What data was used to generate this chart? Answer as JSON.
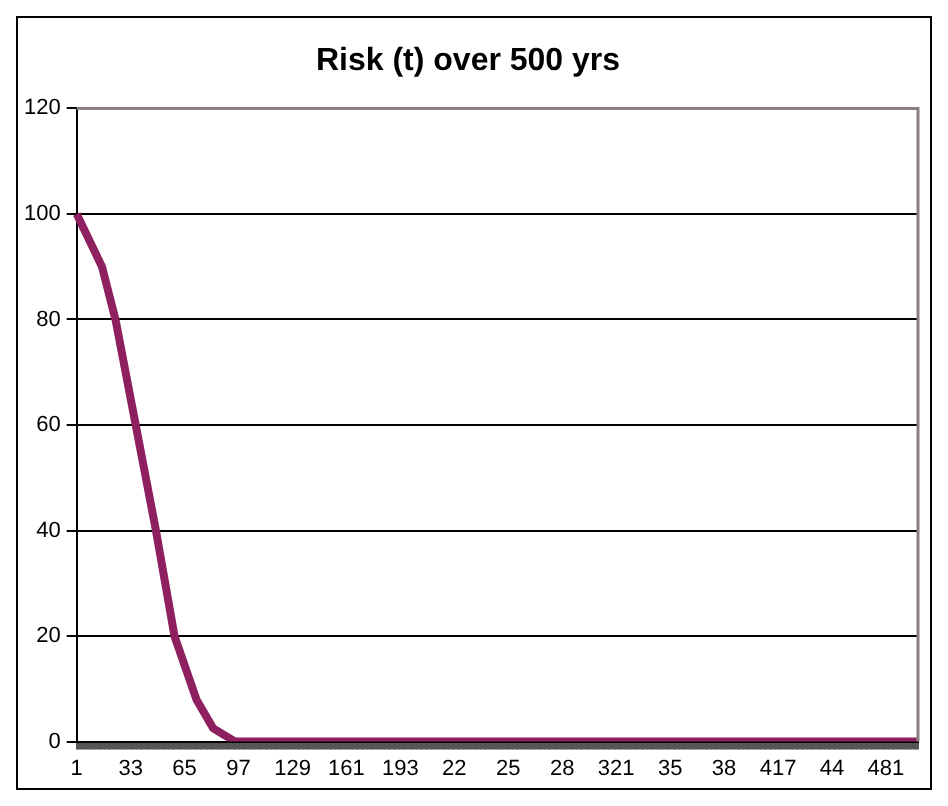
{
  "chart_data": {
    "type": "line",
    "title": "Risk (t) over 500 yrs",
    "categories": [
      "1",
      null,
      null,
      null,
      null,
      null,
      null,
      null,
      null,
      null,
      null,
      null,
      null,
      null,
      null,
      null,
      null,
      null,
      null,
      null,
      null,
      null,
      null,
      null,
      null,
      null,
      null,
      null,
      null,
      null,
      null,
      null,
      "33",
      null,
      null,
      null,
      null,
      null,
      null,
      null,
      null,
      null,
      null,
      null,
      null,
      null,
      null,
      null,
      null,
      null,
      null,
      null,
      null,
      null,
      null,
      null,
      null,
      null,
      null,
      null,
      null,
      null,
      null,
      null,
      "65",
      null,
      null,
      null,
      null,
      null,
      null,
      null,
      null,
      null,
      null,
      null,
      null,
      null,
      null,
      null,
      null,
      null,
      null,
      null,
      null,
      null,
      null,
      null,
      null,
      null,
      null,
      null,
      null,
      null,
      null,
      null,
      "97",
      null,
      null,
      null,
      null,
      null,
      null,
      null,
      null,
      null,
      null,
      null,
      null,
      null,
      null,
      null,
      null,
      null,
      null,
      null,
      null,
      null,
      null,
      null,
      null,
      null,
      null,
      null,
      null,
      null,
      null,
      null,
      "129",
      null,
      null,
      null,
      null,
      null,
      null,
      null,
      null,
      null,
      null,
      null,
      null,
      null,
      null,
      null,
      null,
      null,
      null,
      null,
      null,
      null,
      null,
      null,
      null,
      null,
      null,
      null,
      null,
      null,
      null,
      null,
      "161",
      null,
      null,
      null,
      null,
      null,
      null,
      null,
      null,
      null,
      null,
      null,
      null,
      null,
      null,
      null,
      null,
      null,
      null,
      null,
      null,
      null,
      null,
      null,
      null,
      null,
      null,
      null,
      null,
      null,
      null,
      null,
      "193",
      null,
      null,
      null,
      null,
      null,
      null,
      null,
      null,
      null,
      null,
      null,
      null,
      null,
      null,
      null,
      null,
      null,
      null,
      null,
      null,
      null,
      null,
      null,
      null,
      null,
      null,
      null,
      null,
      null,
      null,
      null,
      "22",
      null,
      null,
      null,
      null,
      null,
      null,
      null,
      null,
      null,
      null,
      null,
      null,
      null,
      null,
      null,
      null,
      null,
      null,
      null,
      null,
      null,
      null,
      null,
      null,
      null,
      null,
      null,
      null,
      null,
      null,
      null,
      "25",
      null,
      null,
      null,
      null,
      null,
      null,
      null,
      null,
      null,
      null,
      null,
      null,
      null,
      null,
      null,
      null,
      null,
      null,
      null,
      null,
      null,
      null,
      null,
      null,
      null,
      null,
      null,
      null,
      null,
      null,
      null,
      "28",
      null,
      null,
      null,
      null,
      null,
      null,
      null,
      null,
      null,
      null,
      null,
      null,
      null,
      null,
      null,
      null,
      null,
      null,
      null,
      null,
      null,
      null,
      null,
      null,
      null,
      null,
      null,
      null,
      null,
      null,
      null,
      "321",
      null,
      null,
      null,
      null,
      null,
      null,
      null,
      null,
      null,
      null,
      null,
      null,
      null,
      null,
      null,
      null,
      null,
      null,
      null,
      null,
      null,
      null,
      null,
      null,
      null,
      null,
      null,
      null,
      null,
      null,
      null,
      "35",
      null,
      null,
      null,
      null,
      null,
      null,
      null,
      null,
      null,
      null,
      null,
      null,
      null,
      null,
      null,
      null,
      null,
      null,
      null,
      null,
      null,
      null,
      null,
      null,
      null,
      null,
      null,
      null,
      null,
      null,
      null,
      "38",
      null,
      null,
      null,
      null,
      null,
      null,
      null,
      null,
      null,
      null,
      null,
      null,
      null,
      null,
      null,
      null,
      null,
      null,
      null,
      null,
      null,
      null,
      null,
      null,
      null,
      null,
      null,
      null,
      null,
      null,
      null,
      "417",
      null,
      null,
      null,
      null,
      null,
      null,
      null,
      null,
      null,
      null,
      null,
      null,
      null,
      null,
      null,
      null,
      null,
      null,
      null,
      null,
      null,
      null,
      null,
      null,
      null,
      null,
      null,
      null,
      null,
      null,
      null,
      "44",
      null,
      null,
      null,
      null,
      null,
      null,
      null,
      null,
      null,
      null,
      null,
      null,
      null,
      null,
      null,
      null,
      null,
      null,
      null,
      null,
      null,
      null,
      null,
      null,
      null,
      null,
      null,
      null,
      null,
      null,
      null,
      "481",
      null,
      null,
      null,
      null,
      null,
      null,
      null,
      null,
      null,
      null,
      null,
      null,
      null,
      null,
      null,
      null,
      null,
      null,
      null
    ],
    "series": [
      {
        "color": "#8e2060",
        "values": [
          100,
          null,
          null,
          null,
          null,
          null,
          null,
          null,
          null,
          null,
          null,
          null,
          null,
          null,
          null,
          90,
          null,
          null,
          null,
          null,
          null,
          null,
          null,
          80,
          null,
          null,
          null,
          null,
          null,
          null,
          null,
          null,
          null,
          null,
          null,
          60,
          null,
          null,
          null,
          null,
          null,
          null,
          null,
          null,
          null,
          null,
          null,
          40,
          null,
          null,
          null,
          null,
          null,
          null,
          null,
          null,
          null,
          null,
          20,
          null,
          null,
          null,
          null,
          null,
          null,
          null,
          null,
          null,
          null,
          null,
          null,
          8,
          null,
          null,
          null,
          null,
          null,
          null,
          null,
          null,
          null,
          2.5,
          null,
          null,
          null,
          null,
          null,
          null,
          null,
          null,
          null,
          null,
          null,
          null,
          0,
          null,
          0,
          null,
          null,
          null,
          null,
          null,
          null,
          null,
          null,
          null,
          null,
          null,
          null,
          null,
          null,
          null,
          null,
          null,
          null,
          null,
          null,
          null,
          null,
          null,
          null,
          null,
          null,
          null,
          null,
          null,
          null,
          null,
          null,
          null,
          null,
          null,
          null,
          null,
          null,
          null,
          null,
          null,
          null,
          null,
          null,
          null,
          null,
          null,
          null,
          null,
          null,
          null,
          null,
          null,
          null,
          null,
          null,
          null,
          null,
          null,
          null,
          null,
          null,
          null,
          null,
          null,
          null,
          null,
          null,
          null,
          null,
          null,
          null,
          null,
          null,
          null,
          null,
          null,
          null,
          null,
          null,
          null,
          null,
          null,
          null,
          null,
          null,
          null,
          null,
          null,
          null,
          null,
          null,
          null,
          null,
          null,
          null,
          null,
          null,
          null,
          null,
          null,
          null,
          null,
          null,
          null,
          null,
          null,
          null,
          null,
          null,
          null,
          null,
          null,
          null,
          null,
          null,
          null,
          null,
          null,
          null,
          null,
          null,
          null,
          null,
          null,
          null,
          null,
          null,
          null,
          null,
          null,
          null,
          null,
          null,
          null,
          null,
          null,
          null,
          null,
          null,
          null,
          null,
          null,
          null,
          null,
          null,
          null,
          null,
          null,
          null,
          null,
          null,
          null,
          null,
          null,
          null,
          null,
          null,
          null,
          null,
          null,
          null,
          null,
          null,
          null,
          null,
          null,
          null,
          null,
          null,
          null,
          null,
          null,
          null,
          null,
          null,
          null,
          null,
          null,
          null,
          null,
          null,
          null,
          null,
          null,
          null,
          null,
          null,
          null,
          null,
          null,
          null,
          null,
          null,
          null,
          null,
          null,
          null,
          null,
          null,
          null,
          null,
          null,
          null,
          null,
          null,
          null,
          null,
          null,
          null,
          null,
          null,
          null,
          null,
          null,
          null,
          null,
          null,
          null,
          null,
          null,
          null,
          null,
          null,
          null,
          null,
          null,
          null,
          null,
          null,
          null,
          null,
          null,
          null,
          null,
          null,
          null,
          null,
          null,
          null,
          null,
          null,
          null,
          null,
          null,
          null,
          null,
          null,
          null,
          null,
          null,
          null,
          null,
          null,
          null,
          null,
          null,
          null,
          null,
          null,
          null,
          null,
          null,
          null,
          null,
          null,
          null,
          null,
          null,
          null,
          null,
          null,
          null,
          null,
          null,
          null,
          null,
          null,
          null,
          null,
          null,
          null,
          null,
          null,
          null,
          null,
          null,
          null,
          null,
          null,
          null,
          null,
          null,
          null,
          null,
          null,
          null,
          null,
          null,
          null,
          null,
          null,
          null,
          null,
          null,
          null,
          null,
          null,
          null,
          null,
          null,
          null,
          null,
          null,
          null,
          null,
          null,
          null,
          null,
          null,
          null,
          null,
          null,
          null,
          null,
          null,
          null,
          null,
          null,
          null,
          null,
          null,
          null,
          null,
          null,
          null,
          null,
          null,
          null,
          null,
          null,
          null,
          null,
          null,
          null,
          null,
          null,
          null,
          null,
          null,
          null,
          null,
          null,
          null,
          null,
          null,
          null,
          null,
          null,
          null,
          null,
          null,
          null,
          null,
          null,
          null,
          null,
          null,
          null,
          null,
          null,
          null,
          null,
          null,
          null,
          null,
          null,
          null,
          null,
          null,
          null,
          null,
          null,
          null,
          null,
          null,
          null,
          null,
          null,
          null,
          null,
          null,
          null,
          null,
          null,
          null,
          null,
          null,
          null,
          null,
          null,
          null,
          0
        ]
      }
    ],
    "ylim": [
      0,
      120
    ],
    "yticks": [
      0,
      20,
      40,
      60,
      80,
      100,
      120
    ],
    "grid": "y",
    "legend": false,
    "marker": "none",
    "line_style": "solid"
  }
}
